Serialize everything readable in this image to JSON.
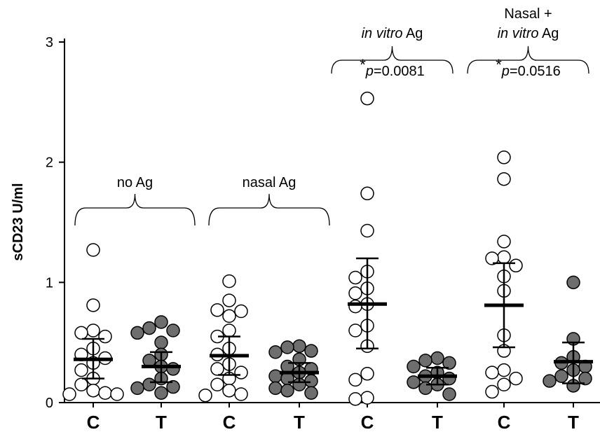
{
  "chart_data": {
    "type": "strip",
    "y_label": "sCD23 U/ml",
    "ylim": [
      0,
      3
    ],
    "yticks": [
      0,
      1,
      2,
      3
    ],
    "groups": [
      {
        "category": "C",
        "fill": "#ffffff",
        "values": [
          1.27,
          0.81,
          0.6,
          0.58,
          0.55,
          0.45,
          0.4,
          0.37,
          0.33,
          0.27,
          0.2,
          0.15,
          0.1,
          0.08,
          0.07,
          0.07
        ],
        "mean": 0.36,
        "lower": 0.2,
        "upper": 0.53
      },
      {
        "category": "T",
        "fill": "#6e6e6e",
        "values": [
          0.67,
          0.62,
          0.6,
          0.58,
          0.5,
          0.4,
          0.35,
          0.3,
          0.28,
          0.2,
          0.15,
          0.13,
          0.12,
          0.08
        ],
        "mean": 0.3,
        "lower": 0.17,
        "upper": 0.42
      },
      {
        "category": "C",
        "fill": "#ffffff",
        "values": [
          1.01,
          0.85,
          0.77,
          0.76,
          0.72,
          0.6,
          0.55,
          0.45,
          0.4,
          0.32,
          0.28,
          0.25,
          0.2,
          0.15,
          0.1,
          0.07,
          0.06
        ],
        "mean": 0.39,
        "lower": 0.23,
        "upper": 0.55
      },
      {
        "category": "T",
        "fill": "#6e6e6e",
        "values": [
          0.47,
          0.46,
          0.43,
          0.42,
          0.36,
          0.3,
          0.28,
          0.25,
          0.22,
          0.2,
          0.18,
          0.15,
          0.12,
          0.1,
          0.08
        ],
        "mean": 0.25,
        "lower": 0.17,
        "upper": 0.33
      },
      {
        "category": "C",
        "fill": "#ffffff",
        "values": [
          2.53,
          1.74,
          1.43,
          1.09,
          1.04,
          0.95,
          0.91,
          0.82,
          0.8,
          0.64,
          0.6,
          0.47,
          0.24,
          0.19,
          0.04,
          0.03
        ],
        "mean": 0.82,
        "lower": 0.45,
        "upper": 1.2
      },
      {
        "category": "T",
        "fill": "#6e6e6e",
        "values": [
          0.37,
          0.35,
          0.33,
          0.3,
          0.25,
          0.22,
          0.2,
          0.17,
          0.15,
          0.12,
          0.07
        ],
        "mean": 0.22,
        "lower": 0.15,
        "upper": 0.29
      },
      {
        "category": "C",
        "fill": "#ffffff",
        "values": [
          2.04,
          1.86,
          1.34,
          1.21,
          1.2,
          1.14,
          1.05,
          0.93,
          0.56,
          0.43,
          0.27,
          0.25,
          0.2,
          0.15,
          0.09
        ],
        "mean": 0.81,
        "lower": 0.46,
        "upper": 1.16
      },
      {
        "category": "T",
        "fill": "#6e6e6e",
        "values": [
          1.0,
          0.53,
          0.38,
          0.33,
          0.3,
          0.27,
          0.22,
          0.2,
          0.18,
          0.14
        ],
        "mean": 0.34,
        "lower": 0.16,
        "upper": 0.5
      }
    ],
    "annotations": [
      {
        "lines": [
          [
            {
              "text": "no Ag"
            }
          ]
        ]
      },
      {
        "lines": [
          [
            {
              "text": "nasal Ag"
            }
          ]
        ]
      },
      {
        "lines": [
          [
            {
              "text": "in vitro",
              "italic": true
            },
            {
              "text": " Ag"
            }
          ]
        ],
        "stat": [
          {
            "text": "*",
            "sup": true
          },
          {
            "text": "p",
            "italic": true
          },
          {
            "text": "=0.0081"
          }
        ]
      },
      {
        "lines": [
          [
            {
              "text": "Nasal +"
            }
          ],
          [
            {
              "text": "in vitro",
              "italic": true
            },
            {
              "text": " Ag"
            }
          ]
        ],
        "stat": [
          {
            "text": "*",
            "sup": true
          },
          {
            "text": "p",
            "italic": true
          },
          {
            "text": "=0.0516"
          }
        ]
      }
    ]
  }
}
